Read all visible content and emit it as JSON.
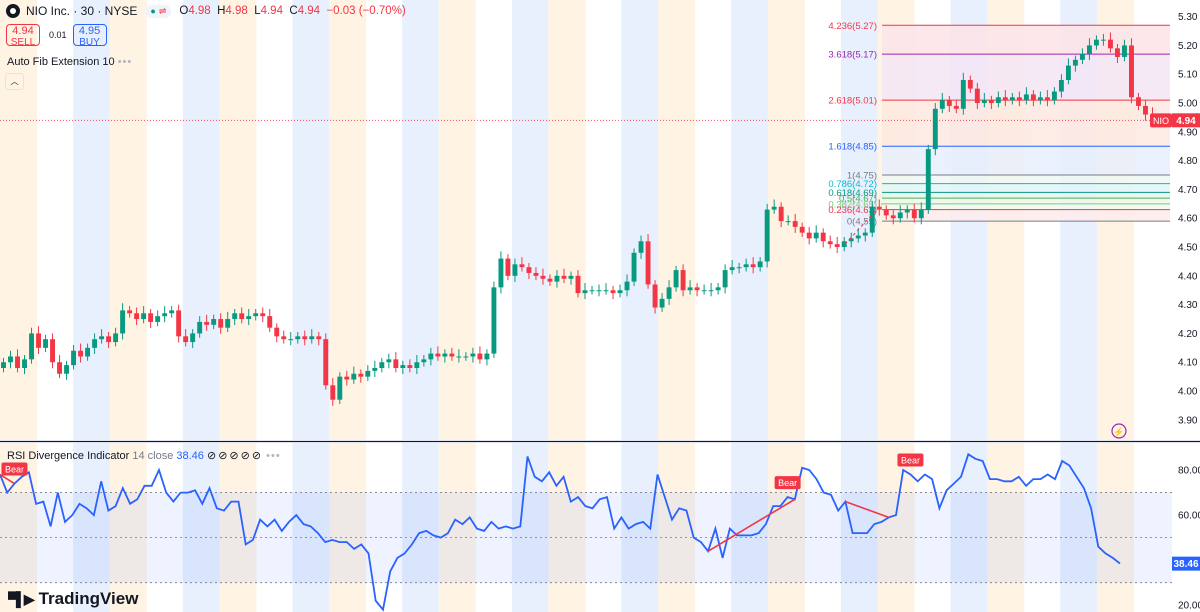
{
  "header": {
    "symbol": "NIO Inc. · 30 · NYSE",
    "open_label": "O",
    "open": "4.98",
    "high_label": "H",
    "high": "4.98",
    "low_label": "L",
    "low": "4.94",
    "close_label": "C",
    "close": "4.94",
    "change": "−0.03 (−0.70%)"
  },
  "trade": {
    "sell_price": "4.94",
    "sell_label": "SELL",
    "spread": "0.01",
    "buy_price": "4.95",
    "buy_label": "BUY"
  },
  "indicators": {
    "fib_name": "Auto Fib Extension 10",
    "rsi_name": "RSI Divergence Indicator",
    "rsi_params": "14 close",
    "rsi_value": "38.46"
  },
  "brand": "TradingView",
  "colors": {
    "up": "#089981",
    "down": "#f23645",
    "rsi_line": "#2962ff",
    "accent": "#2962ff"
  },
  "chart_data": [
    {
      "type": "candlestick",
      "title": "NIO Inc. · 30 · NYSE",
      "ylim": [
        3.83,
        5.33
      ],
      "y_ticks": [
        "5.30",
        "5.20",
        "5.10",
        "5.00",
        "4.90",
        "4.80",
        "4.70",
        "4.60",
        "4.50",
        "4.40",
        "4.30",
        "4.20",
        "4.10",
        "4.00",
        "3.90"
      ],
      "last_price": 4.94,
      "last_price_label": "NIO",
      "last_price_text": "4.94",
      "session_shading": [
        "orange",
        "none",
        "blue",
        "orange",
        "none",
        "blue",
        "orange",
        "none",
        "blue",
        "orange",
        "none",
        "blue",
        "orange",
        "none",
        "blue",
        "orange",
        "none",
        "blue",
        "orange",
        "none",
        "blue",
        "orange",
        "none",
        "blue",
        "orange",
        "none",
        "blue",
        "orange",
        "none",
        "blue",
        "orange",
        "none"
      ],
      "closes": [
        4.1,
        4.12,
        4.08,
        4.11,
        4.2,
        4.15,
        4.18,
        4.1,
        4.06,
        4.09,
        4.14,
        4.12,
        4.15,
        4.18,
        4.19,
        4.17,
        4.2,
        4.28,
        4.27,
        4.25,
        4.27,
        4.24,
        4.26,
        4.27,
        4.28,
        4.19,
        4.17,
        4.2,
        4.24,
        4.23,
        4.25,
        4.22,
        4.25,
        4.27,
        4.25,
        4.26,
        4.27,
        4.26,
        4.22,
        4.19,
        4.18,
        4.18,
        4.19,
        4.18,
        4.19,
        4.18,
        4.02,
        3.97,
        4.05,
        4.04,
        4.06,
        4.05,
        4.07,
        4.08,
        4.1,
        4.11,
        4.08,
        4.09,
        4.08,
        4.1,
        4.11,
        4.13,
        4.12,
        4.13,
        4.12,
        4.12,
        4.12,
        4.13,
        4.11,
        4.13,
        4.36,
        4.46,
        4.4,
        4.44,
        4.43,
        4.41,
        4.4,
        4.39,
        4.38,
        4.4,
        4.39,
        4.4,
        4.34,
        4.35,
        4.35,
        4.35,
        4.35,
        4.34,
        4.35,
        4.38,
        4.48,
        4.52,
        4.37,
        4.29,
        4.32,
        4.36,
        4.42,
        4.35,
        4.36,
        4.35,
        4.35,
        4.35,
        4.36,
        4.42,
        4.43,
        4.43,
        4.44,
        4.43,
        4.45,
        4.63,
        4.64,
        4.59,
        4.59,
        4.57,
        4.55,
        4.53,
        4.55,
        4.52,
        4.51,
        4.5,
        4.52,
        4.53,
        4.54,
        4.55,
        4.64,
        4.63,
        4.61,
        4.6,
        4.62,
        4.63,
        4.6,
        4.63,
        4.84,
        4.98,
        5.01,
        4.99,
        4.98,
        5.08,
        5.05,
        5.0,
        5.01,
        5.0,
        5.02,
        5.01,
        5.02,
        5.01,
        5.03,
        5.01,
        5.02,
        5.01,
        5.04,
        5.08,
        5.13,
        5.15,
        5.17,
        5.2,
        5.22,
        5.22,
        5.19,
        5.16,
        5.2,
        5.02,
        4.99,
        4.96,
        4.94
      ]
    },
    {
      "type": "horizontal_levels",
      "name": "Auto Fib Extension 10",
      "levels": [
        {
          "ratio": "4.236",
          "price": 5.27,
          "label": "4.236(5.27)",
          "color": "#f23645"
        },
        {
          "ratio": "3.618",
          "price": 5.17,
          "label": "3.618(5.17)",
          "color": "#9c27b0"
        },
        {
          "ratio": "2.618",
          "price": 5.01,
          "label": "2.618(5.01)",
          "color": "#f23645"
        },
        {
          "ratio": "1.618",
          "price": 4.85,
          "label": "1.618(4.85)",
          "color": "#2962ff"
        },
        {
          "ratio": "1",
          "price": 4.75,
          "label": "1(4.75)",
          "color": "#787b86"
        },
        {
          "ratio": "0.786",
          "price": 4.72,
          "label": "0.786(4.72)",
          "color": "#00bcd4"
        },
        {
          "ratio": "0.618",
          "price": 4.69,
          "label": "0.618(4.69)",
          "color": "#089981"
        },
        {
          "ratio": "0.5",
          "price": 4.67,
          "label": "0.5(4.67)",
          "color": "#4caf50"
        },
        {
          "ratio": "0.382",
          "price": 4.65,
          "label": "0.382(4.65)",
          "color": "#81c784"
        },
        {
          "ratio": "0.236",
          "price": 4.63,
          "label": "0.236(4.63)",
          "color": "#f23645"
        },
        {
          "ratio": "0",
          "price": 4.59,
          "label": "0(4.59)",
          "color": "#787b86"
        }
      ]
    },
    {
      "type": "line",
      "name": "RSI Divergence Indicator",
      "ylim": [
        17,
        92
      ],
      "y_ticks": [
        "80.00",
        "60.00",
        "20.00"
      ],
      "bands": [
        70,
        50,
        30
      ],
      "last_value": 38.46,
      "last_value_text": "38.46",
      "signals": [
        "Bear",
        "Bear",
        "Bear"
      ],
      "values": [
        78,
        70,
        74,
        77,
        79,
        65,
        66,
        55,
        70,
        57,
        60,
        65,
        63,
        60,
        75,
        62,
        64,
        72,
        65,
        67,
        73,
        73,
        80,
        70,
        66,
        70,
        70,
        71,
        65,
        72,
        63,
        62,
        66,
        66,
        47,
        49,
        58,
        55,
        58,
        53,
        57,
        60,
        56,
        55,
        52,
        48,
        49,
        48,
        48,
        45,
        47,
        43,
        22,
        18,
        35,
        41,
        43,
        47,
        52,
        53,
        51,
        50,
        52,
        58,
        56,
        59,
        54,
        53,
        57,
        54,
        55,
        54,
        55,
        86,
        77,
        75,
        79,
        73,
        77,
        66,
        68,
        64,
        63,
        67,
        68,
        54,
        59,
        54,
        56,
        57,
        54,
        78,
        68,
        58,
        63,
        62,
        50,
        48,
        44,
        54,
        41,
        54,
        51,
        51,
        51,
        52,
        56,
        64,
        64,
        68,
        67,
        81,
        80,
        76,
        70,
        69,
        62,
        66,
        52,
        52,
        52,
        56,
        57,
        59,
        60,
        80,
        78,
        75,
        78,
        76,
        63,
        71,
        74,
        77,
        87,
        85,
        84,
        76,
        76,
        75,
        75,
        77,
        73,
        76,
        76,
        78,
        76,
        84,
        82,
        77,
        72,
        63,
        46,
        43,
        41,
        38.46
      ]
    }
  ]
}
